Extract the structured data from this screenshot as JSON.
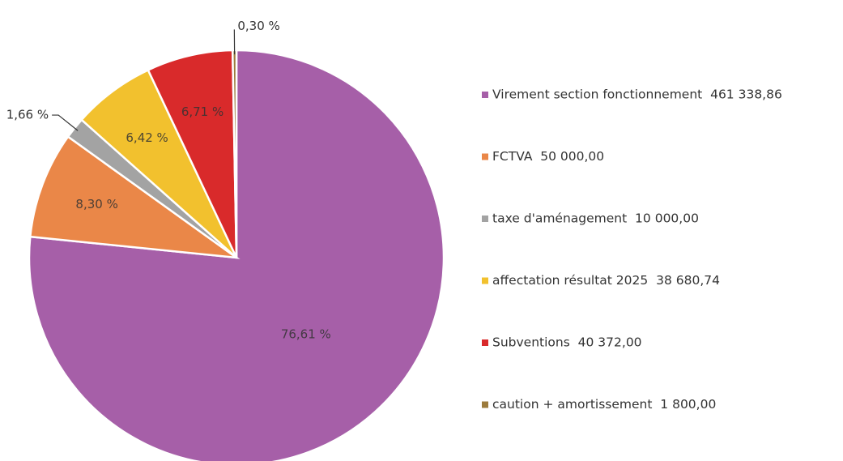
{
  "chart_data": {
    "type": "pie",
    "categories": [
      "Virement section fonctionnement  461 338,86",
      "FCTVA  50 000,00",
      "taxe d'aménagement  10 000,00",
      "affectation résultat 2025  38 680,74",
      "Subventions  40 372,00",
      "caution + amortissement  1 800,00"
    ],
    "values": [
      76.61,
      8.3,
      1.66,
      6.42,
      6.71,
      0.3
    ],
    "value_labels": [
      "76,61 %",
      "8,30 %",
      "1,66 %",
      "6,42 %",
      "6,71 %",
      "0,30 %"
    ],
    "colors": [
      "#a65fa8",
      "#ea8748",
      "#a3a3a3",
      "#f2c12e",
      "#d92a2b",
      "#9c7b3c"
    ],
    "legend": "right"
  }
}
